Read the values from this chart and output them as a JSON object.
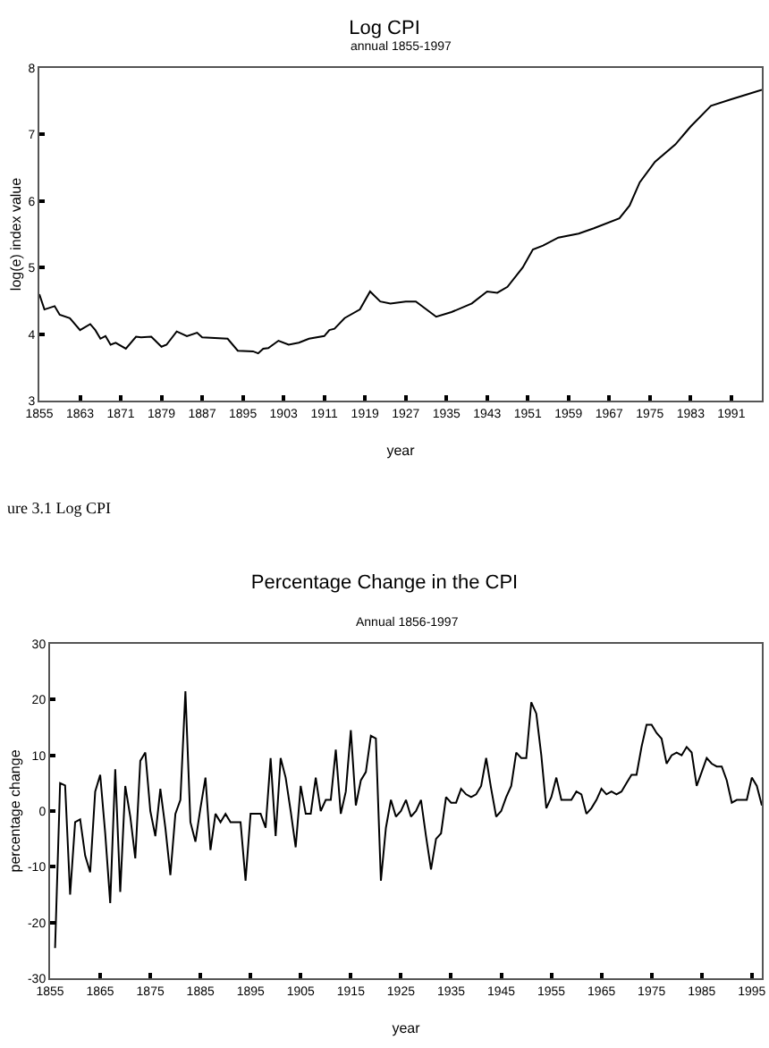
{
  "chart_data": [
    {
      "type": "line",
      "title": "Log CPI",
      "subtitle": "annual 1855-1997",
      "xlabel": "year",
      "ylabel": "log(e) index value",
      "annotations": [
        "ure 3.1 Log CPI"
      ],
      "xlim": [
        1855,
        1997
      ],
      "xticks": [
        1855,
        1863,
        1871,
        1879,
        1887,
        1895,
        1903,
        1911,
        1919,
        1927,
        1935,
        1943,
        1951,
        1959,
        1967,
        1975,
        1983,
        1991
      ],
      "ylim": [
        3,
        8
      ],
      "yticks": [
        3,
        4,
        5,
        6,
        7,
        8
      ],
      "grid": false,
      "marker": "none",
      "line_style": "solid",
      "series": [
        {
          "color": "#000000",
          "x": [
            1855,
            1856,
            1858,
            1859,
            1861,
            1863,
            1865,
            1866,
            1867,
            1868,
            1869,
            1870,
            1872,
            1874,
            1875,
            1877,
            1879,
            1880,
            1882,
            1884,
            1886,
            1887,
            1892,
            1894,
            1897,
            1898,
            1899,
            1900,
            1902,
            1904,
            1906,
            1908,
            1911,
            1912,
            1913,
            1915,
            1918,
            1920,
            1922,
            1924,
            1927,
            1929,
            1933,
            1936,
            1940,
            1943,
            1945,
            1947,
            1950,
            1952,
            1954,
            1957,
            1961,
            1964,
            1969,
            1971,
            1973,
            1976,
            1980,
            1983,
            1987,
            1991,
            1994,
            1997
          ],
          "values": [
            4.6,
            4.37,
            4.42,
            4.29,
            4.24,
            4.06,
            4.15,
            4.06,
            3.93,
            3.97,
            3.84,
            3.87,
            3.78,
            3.96,
            3.95,
            3.96,
            3.81,
            3.84,
            4.04,
            3.97,
            4.02,
            3.95,
            3.93,
            3.75,
            3.74,
            3.71,
            3.78,
            3.79,
            3.9,
            3.84,
            3.87,
            3.93,
            3.97,
            4.06,
            4.08,
            4.24,
            4.37,
            4.64,
            4.49,
            4.46,
            4.49,
            4.49,
            4.26,
            4.33,
            4.46,
            4.64,
            4.62,
            4.71,
            5.0,
            5.27,
            5.33,
            5.45,
            5.51,
            5.59,
            5.74,
            5.93,
            6.28,
            6.59,
            6.85,
            7.12,
            7.43,
            7.53,
            7.6,
            7.67
          ]
        }
      ]
    },
    {
      "type": "line",
      "title": "Percentage Change in the CPI",
      "subtitle": "Annual 1856-1997",
      "xlabel": "year",
      "ylabel": "percentage change",
      "xlim": [
        1855,
        1997
      ],
      "xticks": [
        1855,
        1865,
        1875,
        1885,
        1895,
        1905,
        1915,
        1925,
        1935,
        1945,
        1955,
        1965,
        1975,
        1985,
        1995
      ],
      "ylim": [
        -30,
        30
      ],
      "yticks": [
        -30,
        -20,
        -10,
        0,
        10,
        20,
        30
      ],
      "grid": false,
      "marker": "none",
      "line_style": "solid",
      "series": [
        {
          "color": "#000000",
          "x": [
            1856,
            1857,
            1858,
            1859,
            1860,
            1861,
            1862,
            1863,
            1864,
            1865,
            1866,
            1867,
            1868,
            1869,
            1870,
            1871,
            1872,
            1873,
            1874,
            1875,
            1876,
            1877,
            1878,
            1879,
            1880,
            1881,
            1882,
            1883,
            1884,
            1885,
            1886,
            1887,
            1888,
            1889,
            1890,
            1891,
            1892,
            1893,
            1894,
            1895,
            1896,
            1897,
            1898,
            1899,
            1900,
            1901,
            1902,
            1903,
            1904,
            1905,
            1906,
            1907,
            1908,
            1909,
            1910,
            1911,
            1912,
            1913,
            1914,
            1915,
            1916,
            1917,
            1918,
            1919,
            1920,
            1921,
            1922,
            1923,
            1924,
            1925,
            1926,
            1927,
            1928,
            1929,
            1930,
            1931,
            1932,
            1933,
            1934,
            1935,
            1936,
            1937,
            1938,
            1939,
            1940,
            1941,
            1942,
            1943,
            1944,
            1945,
            1946,
            1947,
            1948,
            1949,
            1950,
            1951,
            1952,
            1953,
            1954,
            1955,
            1956,
            1957,
            1958,
            1959,
            1960,
            1961,
            1962,
            1963,
            1964,
            1965,
            1966,
            1967,
            1968,
            1969,
            1970,
            1971,
            1972,
            1973,
            1974,
            1975,
            1976,
            1977,
            1978,
            1979,
            1980,
            1981,
            1982,
            1983,
            1984,
            1985,
            1986,
            1987,
            1988,
            1989,
            1990,
            1991,
            1992,
            1993,
            1994,
            1995,
            1996,
            1997
          ],
          "values": [
            -24.6,
            5,
            4.6,
            -15,
            -2,
            -1.5,
            -8,
            -11,
            3.5,
            6.5,
            -4,
            -16.5,
            7.5,
            -14.5,
            4.5,
            -1,
            -8.5,
            9,
            10.5,
            0,
            -4.5,
            4,
            -3,
            -11.5,
            -0.5,
            2,
            21.5,
            -2,
            -5.5,
            0.5,
            6,
            -7,
            -0.5,
            -2,
            -0.5,
            -2,
            -2,
            -2,
            -12.5,
            -0.5,
            -0.5,
            -0.5,
            -3,
            9.5,
            -4.5,
            9.5,
            6,
            0,
            -6.5,
            4.5,
            -0.5,
            -0.5,
            6,
            0,
            2,
            2,
            11,
            -0.5,
            3.5,
            14.5,
            1,
            5.5,
            7,
            13.5,
            13,
            -12.5,
            -3,
            2,
            -1,
            0,
            2,
            -1,
            0,
            2,
            -4.5,
            -10.5,
            -5,
            -4,
            2.5,
            1.5,
            1.5,
            4,
            3,
            2.5,
            3,
            4.5,
            9.5,
            4,
            -1,
            0,
            2.5,
            4.5,
            10.5,
            9.5,
            9.5,
            19.5,
            17.5,
            10,
            0.5,
            2.5,
            6,
            2,
            2,
            2,
            3.5,
            3,
            -0.5,
            0.5,
            2,
            4,
            3,
            3.5,
            3,
            3.5,
            5,
            6.5,
            6.5,
            11.5,
            15.5,
            15.5,
            14,
            13,
            8.5,
            10,
            10.5,
            10,
            11.5,
            10.5,
            4.5,
            7,
            9.5,
            8.5,
            8,
            8,
            5.5,
            1.5,
            2,
            2,
            2,
            6,
            4.5,
            1
          ]
        }
      ]
    }
  ]
}
